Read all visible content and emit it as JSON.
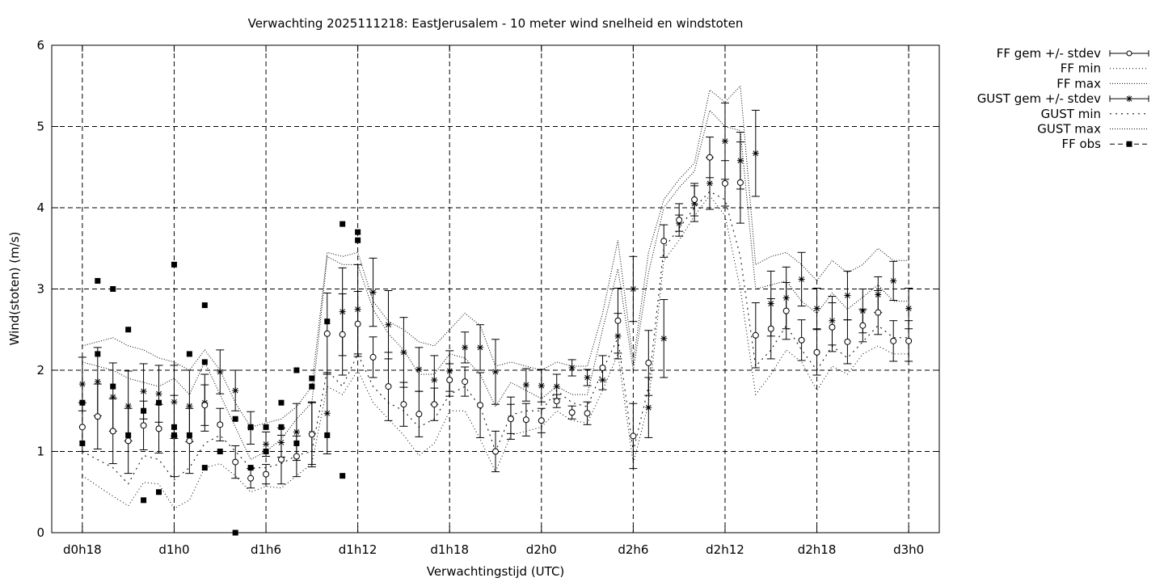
{
  "chart_data": {
    "type": "line",
    "title": "Verwachting 2025111218: EastJerusalem - 10 meter wind snelheid en windstoten",
    "xlabel": "Verwachtingstijd (UTC)",
    "ylabel": "Wind(stoten) (m/s)",
    "xlim": [
      -2,
      56
    ],
    "ylim": [
      0,
      6
    ],
    "x_unit": "hours since d0h18",
    "yticks": [
      0,
      1,
      2,
      3,
      4,
      5,
      6
    ],
    "xticks": [
      {
        "x": 0,
        "label": "d0h18"
      },
      {
        "x": 6,
        "label": "d1h0"
      },
      {
        "x": 12,
        "label": "d1h6"
      },
      {
        "x": 18,
        "label": "d1h12"
      },
      {
        "x": 24,
        "label": "d1h18"
      },
      {
        "x": 30,
        "label": "d2h0"
      },
      {
        "x": 36,
        "label": "d2h6"
      },
      {
        "x": 42,
        "label": "d2h12"
      },
      {
        "x": 48,
        "label": "d2h18"
      },
      {
        "x": 54,
        "label": "d3h0"
      }
    ],
    "grid": true,
    "legend_position": "outside-top-right",
    "legend": [
      {
        "label": "FF gem +/- stdev",
        "key": "ff"
      },
      {
        "label": "FF min",
        "key": "ffmin"
      },
      {
        "label": "FF max",
        "key": "ffmax"
      },
      {
        "label": "GUST gem +/- stdev",
        "key": "gust"
      },
      {
        "label": "GUST min",
        "key": "gustmin"
      },
      {
        "label": "GUST max",
        "key": "gustmax"
      },
      {
        "label": "FF obs",
        "key": "obs"
      }
    ],
    "series": [
      {
        "name": "FF gem +/- stdev",
        "x": [
          0,
          1,
          2,
          3,
          4,
          5,
          6,
          7,
          8,
          9,
          10,
          11,
          12,
          13,
          14,
          15,
          16,
          17,
          18,
          19,
          20,
          21,
          22,
          23,
          24,
          25,
          26,
          27,
          28,
          29,
          30,
          31,
          32,
          33,
          34,
          35,
          36,
          37,
          38,
          39,
          40,
          41,
          42,
          43,
          44,
          45,
          46,
          47,
          48,
          49,
          50,
          51,
          52,
          53,
          54
        ],
        "values": [
          1.3,
          1.43,
          1.25,
          1.13,
          1.32,
          1.28,
          1.19,
          1.13,
          1.57,
          1.33,
          0.87,
          0.67,
          0.72,
          0.9,
          0.94,
          1.21,
          2.45,
          2.44,
          2.57,
          2.16,
          1.8,
          1.58,
          1.46,
          1.58,
          1.88,
          1.86,
          1.57,
          1.0,
          1.4,
          1.39,
          1.38,
          1.62,
          1.48,
          1.47,
          2.03,
          2.61,
          1.19,
          2.09,
          3.59,
          3.85,
          4.1,
          4.62,
          4.3,
          4.31,
          2.43,
          2.51,
          2.73,
          2.37,
          2.22,
          2.53,
          2.35,
          2.55,
          2.71,
          2.36,
          2.36
        ],
        "stdev": [
          0.3,
          0.4,
          0.4,
          0.4,
          0.3,
          0.3,
          0.5,
          0.4,
          0.25,
          0.2,
          0.2,
          0.12,
          0.12,
          0.3,
          0.25,
          0.4,
          0.5,
          0.5,
          0.4,
          0.25,
          0.42,
          0.27,
          0.28,
          0.2,
          0.2,
          0.18,
          0.4,
          0.25,
          0.18,
          0.2,
          0.15,
          0.08,
          0.08,
          0.14,
          0.15,
          0.4,
          0.4,
          0.4,
          0.2,
          0.2,
          0.2,
          0.25,
          0.28,
          0.5,
          0.4,
          0.37,
          0.35,
          0.25,
          0.28,
          0.3,
          0.27,
          0.2,
          0.27,
          0.25,
          0.25
        ]
      },
      {
        "name": "FF min",
        "x": [
          0,
          2,
          3,
          4,
          5,
          6,
          7,
          8,
          9,
          10,
          11,
          12,
          13,
          14,
          15,
          16,
          17,
          18,
          19,
          20,
          21,
          22,
          23,
          24,
          25,
          26,
          27,
          28,
          29,
          30,
          31,
          32,
          33,
          34,
          35,
          36,
          37,
          38,
          39,
          40,
          41,
          42,
          43,
          44,
          45,
          46,
          47,
          48,
          49,
          50,
          51,
          52,
          53,
          54
        ],
        "values": [
          0.7,
          0.45,
          0.33,
          0.62,
          0.6,
          0.3,
          0.4,
          0.8,
          0.85,
          0.7,
          0.5,
          0.57,
          0.55,
          0.7,
          0.85,
          1.8,
          1.7,
          2.0,
          1.6,
          1.4,
          1.2,
          0.95,
          1.1,
          1.5,
          1.5,
          1.15,
          0.75,
          1.2,
          1.25,
          1.3,
          1.5,
          1.38,
          1.35,
          1.75,
          2.2,
          0.85,
          1.6,
          3.35,
          3.6,
          3.9,
          4.15,
          3.9,
          3.0,
          1.7,
          1.95,
          2.25,
          2.1,
          1.75,
          2.05,
          1.95,
          2.2,
          2.3,
          2.2,
          2.2
        ]
      },
      {
        "name": "FF max",
        "x": [
          0,
          2,
          3,
          4,
          5,
          6,
          7,
          8,
          9,
          10,
          11,
          12,
          13,
          14,
          15,
          16,
          17,
          18,
          19,
          20,
          21,
          22,
          23,
          24,
          25,
          26,
          27,
          28,
          29,
          30,
          31,
          32,
          33,
          34,
          35,
          36,
          37,
          38,
          39,
          40,
          41,
          42,
          43,
          44,
          45,
          46,
          47,
          48,
          49,
          50,
          51,
          52,
          53,
          54
        ],
        "values": [
          2.1,
          2.0,
          1.9,
          1.85,
          1.8,
          1.9,
          1.7,
          2.1,
          1.7,
          1.3,
          0.9,
          1.0,
          1.15,
          1.4,
          1.6,
          3.4,
          3.3,
          3.3,
          2.75,
          2.45,
          2.25,
          1.95,
          1.95,
          2.2,
          2.15,
          1.95,
          1.55,
          1.85,
          1.75,
          1.65,
          1.8,
          1.7,
          1.7,
          2.5,
          3.25,
          2.0,
          3.2,
          4.0,
          4.25,
          4.45,
          5.2,
          5.0,
          4.95,
          3.0,
          3.05,
          3.1,
          2.85,
          2.7,
          2.95,
          2.75,
          2.9,
          3.05,
          2.85,
          2.85
        ]
      },
      {
        "name": "GUST gem +/- stdev",
        "x": [
          0,
          1,
          2,
          3,
          4,
          5,
          6,
          7,
          8,
          9,
          10,
          11,
          12,
          13,
          14,
          15,
          16,
          17,
          18,
          19,
          20,
          21,
          22,
          23,
          24,
          25,
          26,
          27,
          28,
          29,
          30,
          31,
          32,
          33,
          34,
          35,
          36,
          37,
          38,
          39,
          40,
          41,
          42,
          43,
          44,
          45,
          46,
          47,
          48,
          49,
          50,
          51,
          52,
          53,
          54
        ],
        "values": [
          1.83,
          1.86,
          1.67,
          1.56,
          1.74,
          1.71,
          1.61,
          1.56,
          1.6,
          1.98,
          1.75,
          1.29,
          1.09,
          1.11,
          1.24,
          1.22,
          1.47,
          2.72,
          2.75,
          2.96,
          2.56,
          2.22,
          2.01,
          1.88,
          1.99,
          2.28,
          2.28,
          1.98,
          1.41,
          1.82,
          1.81,
          1.8,
          2.03,
          1.91,
          1.88,
          2.42,
          3.0,
          1.54,
          2.39,
          3.81,
          4.05,
          4.3,
          4.82,
          4.58,
          4.67,
          2.82,
          2.89,
          3.12,
          2.76,
          2.61,
          2.92,
          2.73,
          2.93,
          3.1,
          2.76
        ],
        "stdev": [
          0.33,
          0.42,
          0.42,
          0.43,
          0.34,
          0.35,
          0.45,
          0.44,
          0.35,
          0.27,
          0.25,
          0.2,
          0.15,
          0.18,
          0.35,
          0.38,
          0.5,
          0.54,
          0.55,
          0.42,
          0.42,
          0.43,
          0.27,
          0.3,
          0.25,
          0.19,
          0.28,
          0.4,
          0.26,
          0.2,
          0.2,
          0.15,
          0.1,
          0.1,
          0.12,
          0.28,
          0.4,
          0.37,
          0.48,
          0.1,
          0.22,
          0.32,
          0.47,
          0.35,
          0.53,
          0.4,
          0.38,
          0.33,
          0.25,
          0.3,
          0.3,
          0.27,
          0.22,
          0.24,
          0.25
        ]
      },
      {
        "name": "GUST min",
        "x": [
          0,
          2,
          3,
          4,
          5,
          6,
          7,
          8,
          9,
          10,
          11,
          12,
          13,
          14,
          15,
          16,
          17,
          18,
          19,
          20,
          21,
          22,
          23,
          24,
          25,
          26,
          27,
          28,
          29,
          30,
          31,
          32,
          33,
          34,
          35,
          36,
          37,
          38,
          39,
          40,
          41,
          42,
          43,
          44,
          45,
          46,
          47,
          48,
          49,
          50,
          51,
          52,
          53,
          54
        ],
        "values": [
          1.0,
          0.8,
          0.6,
          0.95,
          0.9,
          0.65,
          0.8,
          1.1,
          1.2,
          1.0,
          0.8,
          0.8,
          0.85,
          0.95,
          1.0,
          2.0,
          1.8,
          2.2,
          1.8,
          1.6,
          1.5,
          1.3,
          1.4,
          1.7,
          1.8,
          1.55,
          1.0,
          1.45,
          1.5,
          1.5,
          1.75,
          1.6,
          1.55,
          2.0,
          2.4,
          1.0,
          1.8,
          3.5,
          3.75,
          4.0,
          4.2,
          4.1,
          3.4,
          2.05,
          2.25,
          2.55,
          2.25,
          2.0,
          2.3,
          2.15,
          2.35,
          2.55,
          2.4,
          2.4
        ]
      },
      {
        "name": "GUST max",
        "x": [
          0,
          2,
          3,
          4,
          5,
          6,
          7,
          8,
          9,
          10,
          11,
          12,
          13,
          14,
          15,
          16,
          17,
          18,
          19,
          20,
          21,
          22,
          23,
          24,
          25,
          26,
          27,
          28,
          29,
          30,
          31,
          32,
          33,
          34,
          35,
          36,
          37,
          38,
          39,
          40,
          41,
          42,
          43,
          44,
          45,
          46,
          47,
          48,
          49,
          50,
          51,
          52,
          53,
          54
        ],
        "values": [
          2.3,
          2.4,
          2.3,
          2.25,
          2.15,
          2.1,
          2.0,
          2.25,
          2.0,
          1.6,
          1.3,
          1.35,
          1.4,
          1.55,
          1.8,
          3.45,
          3.4,
          3.45,
          2.85,
          2.6,
          2.5,
          2.35,
          2.3,
          2.5,
          2.7,
          2.55,
          2.05,
          2.1,
          2.05,
          2.0,
          2.1,
          2.05,
          2.05,
          2.7,
          3.6,
          2.1,
          3.45,
          4.1,
          4.35,
          4.55,
          5.45,
          5.3,
          5.5,
          3.3,
          3.4,
          3.45,
          3.3,
          3.1,
          3.35,
          3.2,
          3.3,
          3.5,
          3.35,
          3.35
        ]
      },
      {
        "name": "FF obs",
        "x": [
          0,
          0,
          1,
          1,
          2,
          2,
          3,
          3,
          4,
          4,
          5,
          5,
          6,
          6,
          6,
          7,
          7,
          8,
          8,
          8,
          9,
          10,
          10,
          11,
          11,
          12,
          12,
          13,
          13,
          14,
          14,
          15,
          15,
          16,
          16,
          17,
          17,
          18,
          18
        ],
        "values": [
          1.6,
          1.1,
          3.1,
          2.2,
          3.0,
          1.8,
          2.5,
          1.2,
          1.5,
          0.4,
          1.6,
          0.5,
          3.3,
          1.3,
          1.2,
          2.2,
          1.2,
          2.8,
          2.1,
          0.8,
          1.0,
          1.4,
          0.0,
          1.3,
          0.8,
          1.3,
          1.0,
          1.6,
          1.3,
          2.0,
          1.1,
          1.9,
          1.8,
          2.6,
          1.2,
          3.8,
          0.7,
          3.7,
          3.6
        ]
      }
    ]
  }
}
